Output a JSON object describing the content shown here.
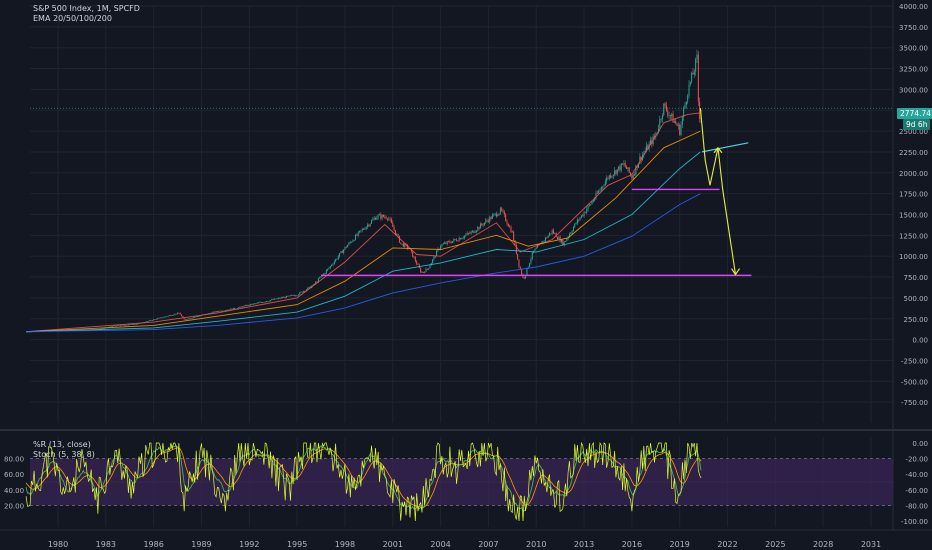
{
  "header": {
    "symbol_line": "S&P 500 Index, 1M, SPCFD",
    "indicator_line": "EMA 20/50/100/200"
  },
  "oscillator": {
    "line1": "%R (13, close)",
    "line2": "Stoch (5, 38, 8)"
  },
  "last_price": "2774.74",
  "countdown": "9d 6h",
  "colors": {
    "background": "#131722",
    "grid": "#1f2430",
    "axis_text": "#b2b5be",
    "up": "#26a69a",
    "down": "#ef5350",
    "ema20": "#ef5350",
    "ema50": "#ff9800",
    "ema100": "#26c6da",
    "ema200": "#2962ff",
    "pink_line": "#e040fb",
    "projection": "#e6ee3a",
    "channel_line": "#4dd0e1",
    "osc_fill": "#3a2456",
    "willr": "#e0ff30",
    "stoch_k": "#4caf50",
    "stoch_d": "#ff9800"
  },
  "chart_data": [
    {
      "type": "candlestick",
      "title": "S&P 500 Index, 1M, SPCFD",
      "ylim": [
        -1000,
        4000
      ],
      "y_ticks": [
        "4000.00",
        "3750.00",
        "3500.00",
        "3250.00",
        "3000.00",
        "2750.00",
        "2500.00",
        "2250.00",
        "2000.00",
        "1750.00",
        "1500.00",
        "1250.00",
        "1000.00",
        "750.00",
        "500.00",
        "250.00",
        "0.00",
        "-250.00",
        "-500.00",
        "-750.00"
      ],
      "x_ticks": [
        "1980",
        "1983",
        "1986",
        "1989",
        "1992",
        "1995",
        "1998",
        "2001",
        "2004",
        "2007",
        "2010",
        "2013",
        "2016",
        "2019",
        "2022",
        "2025",
        "2028",
        "2031"
      ],
      "x_tick_years": [
        1980,
        1983,
        1986,
        1989,
        1992,
        1995,
        1998,
        2001,
        2004,
        2007,
        2010,
        2013,
        2016,
        2019,
        2022,
        2025,
        2028,
        2031
      ],
      "price_path": [
        [
          1978.0,
          95
        ],
        [
          1980.0,
          110
        ],
        [
          1982.5,
          120
        ],
        [
          1983.5,
          165
        ],
        [
          1985.0,
          190
        ],
        [
          1987.6,
          320
        ],
        [
          1987.9,
          240
        ],
        [
          1990.0,
          340
        ],
        [
          1991.0,
          370
        ],
        [
          1993.0,
          460
        ],
        [
          1995.0,
          540
        ],
        [
          1996.0,
          650
        ],
        [
          1997.0,
          860
        ],
        [
          1998.0,
          1100
        ],
        [
          1999.0,
          1300
        ],
        [
          2000.0,
          1480
        ],
        [
          2000.7,
          1470
        ],
        [
          2001.5,
          1150
        ],
        [
          2002.0,
          1100
        ],
        [
          2002.8,
          800
        ],
        [
          2003.2,
          850
        ],
        [
          2004.0,
          1130
        ],
        [
          2005.0,
          1200
        ],
        [
          2006.0,
          1290
        ],
        [
          2007.0,
          1440
        ],
        [
          2007.8,
          1550
        ],
        [
          2008.5,
          1280
        ],
        [
          2008.9,
          900
        ],
        [
          2009.2,
          720
        ],
        [
          2009.8,
          1050
        ],
        [
          2011.0,
          1300
        ],
        [
          2011.7,
          1150
        ],
        [
          2012.5,
          1400
        ],
        [
          2013.5,
          1650
        ],
        [
          2014.5,
          1950
        ],
        [
          2015.5,
          2100
        ],
        [
          2016.0,
          1950
        ],
        [
          2016.5,
          2170
        ],
        [
          2017.5,
          2450
        ],
        [
          2018.0,
          2800
        ],
        [
          2018.9,
          2550
        ],
        [
          2019.0,
          2500
        ],
        [
          2019.5,
          2980
        ],
        [
          2019.9,
          3230
        ],
        [
          2020.1,
          3380
        ],
        [
          2020.2,
          2600
        ],
        [
          2020.3,
          2774
        ]
      ],
      "ema_series": [
        {
          "name": "EMA 20",
          "points": [
            [
              1978.0,
              95
            ],
            [
              1986,
              210
            ],
            [
              1990,
              320
            ],
            [
              1995,
              500
            ],
            [
              1998,
              930
            ],
            [
              2000.5,
              1380
            ],
            [
              2002.5,
              1020
            ],
            [
              2004,
              1000
            ],
            [
              2007.5,
              1400
            ],
            [
              2009,
              1050
            ],
            [
              2011,
              1200
            ],
            [
              2014.5,
              1850
            ],
            [
              2016,
              1980
            ],
            [
              2018,
              2600
            ],
            [
              2019.5,
              2700
            ],
            [
              2020.3,
              2720
            ]
          ]
        },
        {
          "name": "EMA 50",
          "points": [
            [
              1978.0,
              95
            ],
            [
              1986,
              170
            ],
            [
              1990,
              280
            ],
            [
              1995,
              420
            ],
            [
              1998,
              700
            ],
            [
              2001,
              1100
            ],
            [
              2004,
              1080
            ],
            [
              2007.5,
              1250
            ],
            [
              2009.5,
              1120
            ],
            [
              2012,
              1220
            ],
            [
              2015,
              1700
            ],
            [
              2018,
              2300
            ],
            [
              2020.3,
              2500
            ]
          ]
        },
        {
          "name": "EMA 100",
          "points": [
            [
              1978.0,
              95
            ],
            [
              1986,
              140
            ],
            [
              1990,
              220
            ],
            [
              1995,
              330
            ],
            [
              1998,
              520
            ],
            [
              2001,
              820
            ],
            [
              2004,
              920
            ],
            [
              2007.5,
              1080
            ],
            [
              2010,
              1050
            ],
            [
              2013,
              1200
            ],
            [
              2016,
              1500
            ],
            [
              2019,
              2050
            ],
            [
              2020.3,
              2250
            ]
          ]
        },
        {
          "name": "EMA 200",
          "points": [
            [
              1978.0,
              95
            ],
            [
              1986,
              120
            ],
            [
              1990,
              170
            ],
            [
              1995,
              260
            ],
            [
              1998,
              380
            ],
            [
              2001,
              560
            ],
            [
              2004,
              680
            ],
            [
              2007.5,
              800
            ],
            [
              2010,
              870
            ],
            [
              2013,
              1000
            ],
            [
              2016,
              1240
            ],
            [
              2019,
              1620
            ],
            [
              2020.3,
              1750
            ]
          ]
        }
      ],
      "annotations": {
        "horizontal_levels": [
          {
            "value": 770,
            "from": 1996.5,
            "to": 2023.5
          },
          {
            "value": 1800,
            "from": 2016.0,
            "to": 2021.5
          }
        ],
        "channel_line": [
          [
            2020.4,
            2250
          ],
          [
            2023.3,
            2360
          ]
        ],
        "projection_path": [
          [
            2020.3,
            2774
          ],
          [
            2020.6,
            2150
          ],
          [
            2020.9,
            1850
          ],
          [
            2021.4,
            2300
          ],
          [
            2021.7,
            1800
          ],
          [
            2022.5,
            780
          ]
        ]
      }
    },
    {
      "type": "line",
      "title": "%R (13, close) / Stoch (5, 38, 8)",
      "y_ticks_left": [
        "80.00",
        "60.00",
        "40.00",
        "20.00"
      ],
      "y_ticks_right": [
        "0.00",
        "-20.00",
        "-40.00",
        "-60.00",
        "-80.00",
        "-100.00"
      ],
      "levels": [
        20,
        80
      ],
      "series_shape": [
        [
          1978.0,
          25
        ],
        [
          1979.5,
          82
        ],
        [
          1980.5,
          35
        ],
        [
          1981.5,
          70
        ],
        [
          1982.5,
          30
        ],
        [
          1983.5,
          90
        ],
        [
          1984.5,
          45
        ],
        [
          1986,
          92
        ],
        [
          1987.6,
          95
        ],
        [
          1987.9,
          22
        ],
        [
          1989,
          88
        ],
        [
          1990.5,
          30
        ],
        [
          1991.5,
          90
        ],
        [
          1993,
          85
        ],
        [
          1994.5,
          40
        ],
        [
          1995.5,
          95
        ],
        [
          1997,
          92
        ],
        [
          1998.6,
          35
        ],
        [
          1999.5,
          92
        ],
        [
          2000.8,
          40
        ],
        [
          2001.5,
          20
        ],
        [
          2002.8,
          15
        ],
        [
          2003.8,
          85
        ],
        [
          2005,
          70
        ],
        [
          2006,
          90
        ],
        [
          2007.5,
          80
        ],
        [
          2008.5,
          18
        ],
        [
          2009.2,
          10
        ],
        [
          2010,
          80
        ],
        [
          2010.5,
          45
        ],
        [
          2011.7,
          30
        ],
        [
          2012.5,
          85
        ],
        [
          2014,
          92
        ],
        [
          2015.5,
          55
        ],
        [
          2016,
          30
        ],
        [
          2016.8,
          85
        ],
        [
          2018,
          95
        ],
        [
          2018.9,
          25
        ],
        [
          2019.5,
          90
        ],
        [
          2020.1,
          92
        ],
        [
          2020.3,
          40
        ]
      ]
    }
  ]
}
